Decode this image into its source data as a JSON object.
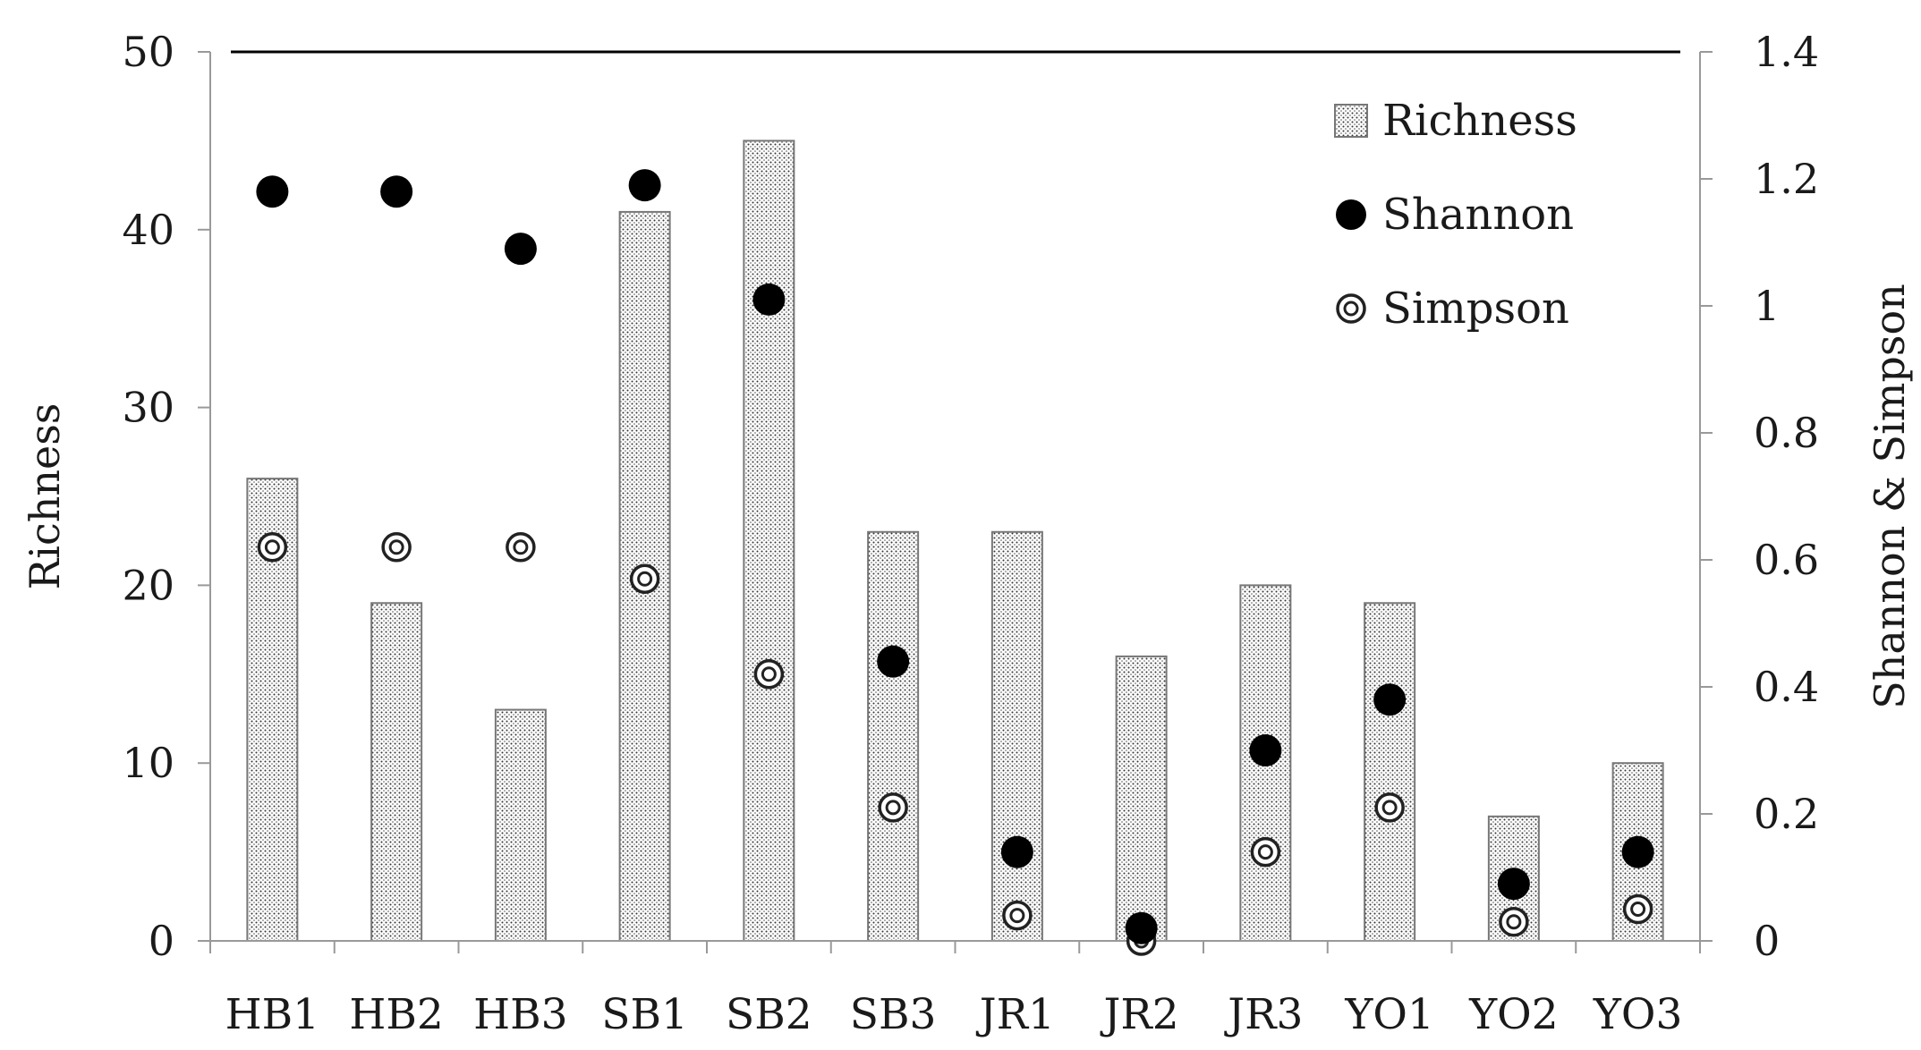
{
  "chart_data": {
    "type": "bar",
    "categories": [
      "HB1",
      "HB2",
      "HB3",
      "SB1",
      "SB2",
      "SB3",
      "JR1",
      "JR2",
      "JR3",
      "YO1",
      "YO2",
      "YO3"
    ],
    "series": [
      {
        "name": "Richness",
        "axis": "left",
        "mark": "bar",
        "values": [
          26,
          19,
          13,
          41,
          45,
          23,
          23,
          16,
          20,
          19,
          7,
          10
        ]
      },
      {
        "name": "Shannon",
        "axis": "right",
        "mark": "filled-circle",
        "values": [
          1.18,
          1.18,
          1.09,
          1.19,
          1.01,
          0.44,
          0.14,
          0.02,
          0.3,
          0.38,
          0.09,
          0.14
        ]
      },
      {
        "name": "Simpson",
        "axis": "right",
        "mark": "ring-circle",
        "values": [
          0.62,
          0.62,
          0.62,
          0.57,
          0.42,
          0.21,
          0.04,
          0.0,
          0.14,
          0.21,
          0.03,
          0.05
        ]
      }
    ],
    "ylabel": "Richness",
    "ylabel_right": "Shannon & Simpson",
    "ylim": [
      0,
      50
    ],
    "ylim_right": [
      0,
      1.4
    ],
    "yticks": [
      "0",
      "10",
      "20",
      "30",
      "40",
      "50"
    ],
    "yticks_right": [
      "0",
      "0.2",
      "0.4",
      "0.6",
      "0.8",
      "1",
      "1.2",
      "1.4"
    ],
    "grid": false,
    "legend_position": "top-right",
    "colors": {
      "bar_fill": "#ffffff",
      "bar_dots": "#333333",
      "bar_outline": "#777777",
      "shannon": "#000000",
      "simpson": "#222222",
      "axis": "#999999",
      "top_line": "#000000"
    }
  }
}
